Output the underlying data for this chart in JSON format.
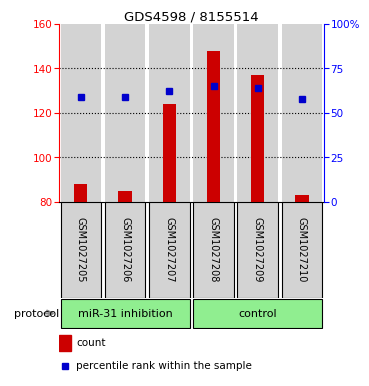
{
  "title": "GDS4598 / 8155514",
  "samples": [
    "GSM1027205",
    "GSM1027206",
    "GSM1027207",
    "GSM1027208",
    "GSM1027209",
    "GSM1027210"
  ],
  "counts": [
    88,
    85,
    124,
    148,
    137,
    83
  ],
  "percentile_ranks": [
    127,
    127,
    130,
    132,
    131,
    126
  ],
  "ylim_left": [
    80,
    160
  ],
  "ylim_right": [
    0,
    100
  ],
  "yticks_left": [
    80,
    100,
    120,
    140,
    160
  ],
  "yticks_right": [
    0,
    25,
    50,
    75,
    100
  ],
  "ytick_labels_right": [
    "0",
    "25",
    "50",
    "75",
    "100%"
  ],
  "bar_color": "#cc0000",
  "marker_color": "#0000cc",
  "bar_bottom": 80,
  "protocol_groups": [
    {
      "label": "miR-31 inhibition",
      "start": 0,
      "end": 2,
      "color": "#90ee90"
    },
    {
      "label": "control",
      "start": 3,
      "end": 5,
      "color": "#90ee90"
    }
  ],
  "protocol_label": "protocol",
  "legend_count_label": "count",
  "legend_percentile_label": "percentile rank within the sample",
  "sample_bg_color": "#d3d3d3",
  "gridline_yticks": [
    100,
    120,
    140
  ]
}
